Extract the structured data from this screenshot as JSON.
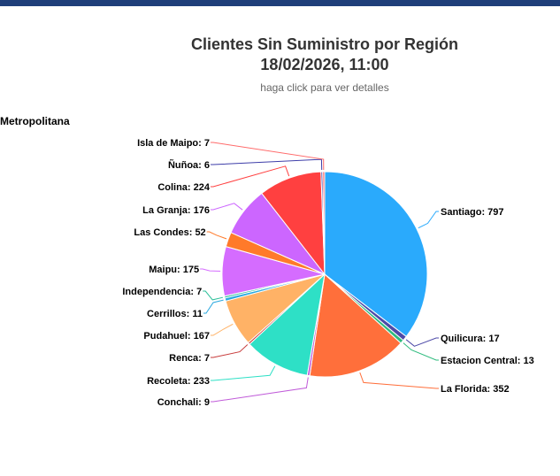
{
  "header": {
    "title_line1": "Clientes Sin Suministro por Región",
    "title_line2": "18/02/2026, 11:00",
    "subtitle": "haga click para ver detalles"
  },
  "region_label": "Metropolitana",
  "chart_data": {
    "type": "pie",
    "title": "Clientes Sin Suministro por Región 18/02/2026, 11:00",
    "subtitle": "haga click para ver detalles",
    "series_label": "Metropolitana",
    "data_label_format": "{name}: {value}",
    "slices": [
      {
        "name": "Santiago",
        "value": 797,
        "color": "#2aaafc"
      },
      {
        "name": "Quilicura",
        "value": 17,
        "color": "#4d4aa8"
      },
      {
        "name": "Estacion Central",
        "value": 13,
        "color": "#2ebb7e"
      },
      {
        "name": "La Florida",
        "value": 352,
        "color": "#ff6f3b"
      },
      {
        "name": "Conchali",
        "value": 9,
        "color": "#c05bd9"
      },
      {
        "name": "Recoleta",
        "value": 233,
        "color": "#2ee0c6"
      },
      {
        "name": "Renca",
        "value": 7,
        "color": "#c73a3a"
      },
      {
        "name": "Pudahuel",
        "value": 167,
        "color": "#ffb266"
      },
      {
        "name": "Cerrillos",
        "value": 11,
        "color": "#2aa9e0"
      },
      {
        "name": "Independencia",
        "value": 7,
        "color": "#2bbf99"
      },
      {
        "name": "Maipu",
        "value": 175,
        "color": "#d56cff"
      },
      {
        "name": "Las Condes",
        "value": 52,
        "color": "#ff7a2a"
      },
      {
        "name": "La Granja",
        "value": 176,
        "color": "#cc66ff"
      },
      {
        "name": "Colina",
        "value": 224,
        "color": "#ff4040"
      },
      {
        "name": "Ñuñoa",
        "value": 6,
        "color": "#3c3ca8"
      },
      {
        "name": "Isla de Maipo",
        "value": 7,
        "color": "#ff6a6a"
      }
    ]
  }
}
